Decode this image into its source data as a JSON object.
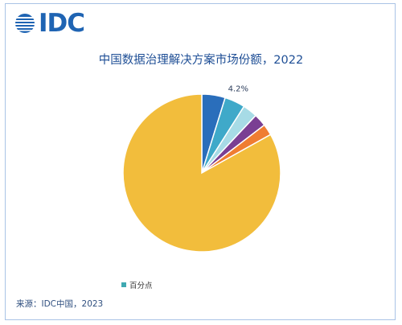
{
  "brand": {
    "logo_icon": "idc-globe-icon",
    "logo_text": "IDC"
  },
  "title": "中国数据治理解决方案市场份额，2022",
  "source": "来源：IDC中国，2023",
  "legend_label": "百分点",
  "chart_data": {
    "type": "pie",
    "title": "中国数据治理解决方案市场份额，2022",
    "slices": [
      {
        "value": 4.8,
        "color": "#2a6ebb"
      },
      {
        "value": 4.2,
        "color": "#3fa9c9"
      },
      {
        "value": 3.0,
        "color": "#a7dbe6"
      },
      {
        "value": 2.6,
        "color": "#7a3f93"
      },
      {
        "value": 2.3,
        "color": "#ef7d32"
      },
      {
        "value": 83.1,
        "color": "#f2bd3c"
      }
    ],
    "data_labels": [
      "4.2%"
    ],
    "legend": {
      "entries": [
        "百分点"
      ],
      "placement": "bottom-left",
      "color": "#3fa9b2"
    }
  }
}
